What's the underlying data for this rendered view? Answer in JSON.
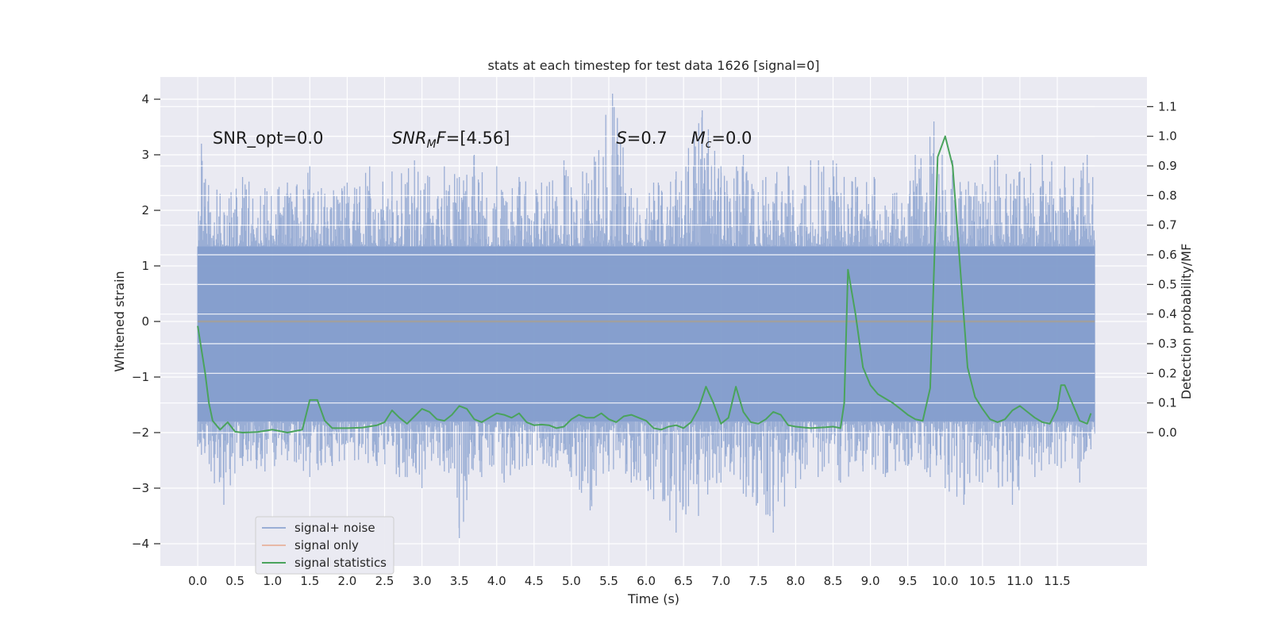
{
  "chart_data": {
    "type": "line",
    "title": "stats at each timestep for test data 1626 [signal=0]",
    "xlabel": "Time (s)",
    "ylabel": "Whitened strain",
    "ylabel_right": "Detection probability/MF",
    "xlim": [
      -0.5,
      12.7
    ],
    "ylim": [
      -4.4,
      4.4
    ],
    "ylim_right": [
      -0.45,
      1.2
    ],
    "x_ticks": [
      0.0,
      0.5,
      1.0,
      1.5,
      2.0,
      2.5,
      3.0,
      3.5,
      4.0,
      4.5,
      5.0,
      5.5,
      6.0,
      6.5,
      7.0,
      7.5,
      8.0,
      8.5,
      9.0,
      9.5,
      10.0,
      10.5,
      11.0,
      11.5
    ],
    "x_tick_labels": [
      "0.0",
      "0.5",
      "1.0",
      "1.5",
      "2.0",
      "2.5",
      "3.0",
      "3.5",
      "4.0",
      "4.5",
      "5.0",
      "5.5",
      "6.0",
      "6.5",
      "7.0",
      "7.5",
      "8.0",
      "8.5",
      "9.0",
      "9.5",
      "10.0",
      "10.5",
      "11.0",
      "11.5"
    ],
    "y_ticks": [
      -4,
      -3,
      -2,
      -1,
      0,
      1,
      2,
      3,
      4
    ],
    "y_tick_labels": [
      "−4",
      "−3",
      "−2",
      "−1",
      "0",
      "1",
      "2",
      "3",
      "4"
    ],
    "y_right_ticks": [
      0.0,
      0.1,
      0.2,
      0.3,
      0.4,
      0.5,
      0.6,
      0.7,
      0.8,
      0.9,
      1.0,
      1.1
    ],
    "y_right_tick_labels": [
      "0.0",
      "0.1",
      "0.2",
      "0.3",
      "0.4",
      "0.5",
      "0.6",
      "0.7",
      "0.8",
      "0.9",
      "1.0",
      "1.1"
    ],
    "grid": true,
    "legend_position": "lower-left",
    "annotations": [
      {
        "id": "snr-opt",
        "x": 0.2,
        "y": 3.3,
        "parts": [
          {
            "t": "SNR_opt=0.0",
            "style": "normal"
          }
        ]
      },
      {
        "id": "snr-mf",
        "x": 2.6,
        "y": 3.3,
        "parts": [
          {
            "t": "SNR",
            "style": "italic"
          },
          {
            "t": "M",
            "style": "italic-sub"
          },
          {
            "t": "F",
            "style": "italic"
          },
          {
            "t": "=[4.56]",
            "style": "normal"
          }
        ]
      },
      {
        "id": "s-value",
        "x": 5.6,
        "y": 3.3,
        "parts": [
          {
            "t": "S",
            "style": "italic"
          },
          {
            "t": "=0.7",
            "style": "normal"
          }
        ]
      },
      {
        "id": "mc-value",
        "x": 6.6,
        "y": 3.3,
        "parts": [
          {
            "t": "M",
            "style": "italic"
          },
          {
            "t": "c",
            "style": "italic-sub"
          },
          {
            "t": "=0.0",
            "style": "normal"
          }
        ]
      }
    ],
    "series": [
      {
        "name": "signal+ noise",
        "color": "#7f9acb",
        "x_range": [
          0.0,
          12.0
        ],
        "band": [
          -1.8,
          1.35
        ],
        "peak_max": [
          0.05,
          3.2,
          0.3,
          2.3,
          0.6,
          2.6,
          0.9,
          2.4,
          1.2,
          2.5,
          1.5,
          2.8,
          1.7,
          2.3,
          2.0,
          2.5,
          2.3,
          2.8,
          2.6,
          2.7,
          2.9,
          2.9,
          3.1,
          2.6,
          3.3,
          2.8,
          3.5,
          2.6,
          3.7,
          3.0,
          4.0,
          2.8,
          4.3,
          2.6,
          4.6,
          2.5,
          4.9,
          2.9,
          5.15,
          2.7,
          5.55,
          4.1,
          5.8,
          2.4,
          6.1,
          2.5,
          6.4,
          2.7,
          6.75,
          3.8,
          7.0,
          2.8,
          7.3,
          3.0,
          7.6,
          2.6,
          7.9,
          2.8,
          8.2,
          2.9,
          8.5,
          2.9,
          8.8,
          2.6,
          9.05,
          2.6,
          9.3,
          2.3,
          9.6,
          3.0,
          9.85,
          3.6,
          10.1,
          2.9,
          10.4,
          2.5,
          10.7,
          3.0,
          11.0,
          2.7,
          11.3,
          3.0,
          11.6,
          2.8,
          11.9,
          3.0
        ],
        "peak_min": [
          0.05,
          -2.4,
          0.35,
          -3.3,
          0.6,
          -2.6,
          0.9,
          -2.7,
          1.2,
          -2.5,
          1.5,
          -2.8,
          1.8,
          -2.6,
          2.1,
          -2.5,
          2.4,
          -2.6,
          2.7,
          -2.8,
          3.0,
          -3.0,
          3.3,
          -2.7,
          3.5,
          -3.9,
          3.8,
          -2.8,
          4.1,
          -2.9,
          4.4,
          -2.6,
          4.7,
          -2.6,
          5.0,
          -2.8,
          5.25,
          -3.4,
          5.5,
          -2.7,
          5.8,
          -2.9,
          6.1,
          -3.2,
          6.4,
          -3.8,
          6.7,
          -3.5,
          7.0,
          -2.9,
          7.3,
          -3.1,
          7.7,
          -3.8,
          8.0,
          -3.0,
          8.3,
          -2.8,
          8.6,
          -2.9,
          8.9,
          -2.7,
          9.2,
          -2.8,
          9.5,
          -2.6,
          9.8,
          -2.8,
          10.0,
          -3.0,
          10.25,
          -3.3,
          10.5,
          -2.9,
          10.9,
          -3.3,
          11.2,
          -2.8,
          11.5,
          -2.6,
          11.8,
          -2.9,
          11.95,
          -2.3
        ]
      },
      {
        "name": "signal only",
        "color": "#e6a88c",
        "x": [
          0.0,
          12.0
        ],
        "y": [
          0.0,
          0.0
        ]
      },
      {
        "name": "signal statistics",
        "color": "#4aa35c",
        "axis": "right",
        "x": [
          0.0,
          0.1,
          0.15,
          0.2,
          0.3,
          0.4,
          0.5,
          0.6,
          0.8,
          1.0,
          1.1,
          1.2,
          1.3,
          1.4,
          1.5,
          1.6,
          1.7,
          1.8,
          1.9,
          2.0,
          2.2,
          2.4,
          2.5,
          2.6,
          2.7,
          2.8,
          2.9,
          3.0,
          3.1,
          3.2,
          3.3,
          3.4,
          3.5,
          3.6,
          3.7,
          3.8,
          3.9,
          4.0,
          4.1,
          4.2,
          4.3,
          4.4,
          4.5,
          4.6,
          4.7,
          4.8,
          4.9,
          5.0,
          5.1,
          5.2,
          5.3,
          5.4,
          5.5,
          5.6,
          5.7,
          5.8,
          5.9,
          6.0,
          6.1,
          6.2,
          6.3,
          6.4,
          6.5,
          6.6,
          6.7,
          6.8,
          6.9,
          7.0,
          7.1,
          7.2,
          7.3,
          7.4,
          7.5,
          7.6,
          7.7,
          7.8,
          7.9,
          8.0,
          8.2,
          8.4,
          8.5,
          8.6,
          8.65,
          8.7,
          8.8,
          8.9,
          9.0,
          9.1,
          9.2,
          9.3,
          9.4,
          9.5,
          9.6,
          9.7,
          9.8,
          9.9,
          10.0,
          10.1,
          10.2,
          10.3,
          10.4,
          10.5,
          10.6,
          10.7,
          10.8,
          10.9,
          11.0,
          11.1,
          11.2,
          11.3,
          11.4,
          11.5,
          11.55,
          11.6,
          11.7,
          11.8,
          11.9,
          11.95
        ],
        "y": [
          0.36,
          0.2,
          0.1,
          0.04,
          0.01,
          0.035,
          0.003,
          0.0,
          0.002,
          0.01,
          0.005,
          0.0,
          0.005,
          0.01,
          0.11,
          0.11,
          0.04,
          0.015,
          0.015,
          0.015,
          0.017,
          0.025,
          0.035,
          0.075,
          0.05,
          0.03,
          0.055,
          0.08,
          0.07,
          0.045,
          0.04,
          0.06,
          0.09,
          0.08,
          0.045,
          0.035,
          0.05,
          0.065,
          0.06,
          0.05,
          0.065,
          0.035,
          0.025,
          0.027,
          0.025,
          0.015,
          0.02,
          0.045,
          0.06,
          0.05,
          0.05,
          0.065,
          0.045,
          0.035,
          0.055,
          0.06,
          0.05,
          0.04,
          0.015,
          0.01,
          0.02,
          0.025,
          0.015,
          0.035,
          0.08,
          0.155,
          0.1,
          0.03,
          0.05,
          0.155,
          0.07,
          0.035,
          0.03,
          0.045,
          0.07,
          0.06,
          0.025,
          0.02,
          0.015,
          0.018,
          0.02,
          0.015,
          0.1,
          0.55,
          0.4,
          0.22,
          0.16,
          0.13,
          0.115,
          0.1,
          0.08,
          0.06,
          0.045,
          0.04,
          0.15,
          0.93,
          1.0,
          0.9,
          0.56,
          0.22,
          0.12,
          0.08,
          0.045,
          0.035,
          0.045,
          0.075,
          0.09,
          0.07,
          0.05,
          0.035,
          0.03,
          0.08,
          0.16,
          0.16,
          0.1,
          0.04,
          0.03,
          0.065
        ]
      }
    ]
  }
}
